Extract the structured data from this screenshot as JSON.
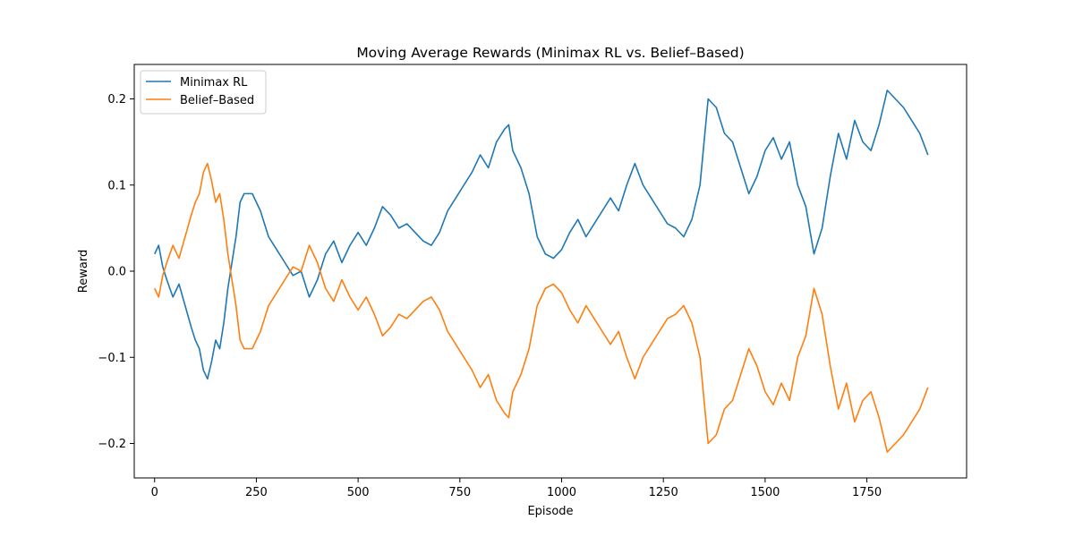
{
  "chart_data": {
    "type": "line",
    "title": "Moving Average Rewards (Minimax RL vs. Belief–Based)",
    "xlabel": "Episode",
    "ylabel": "Reward",
    "xlim": [
      -50,
      1995
    ],
    "ylim": [
      -0.24,
      0.24
    ],
    "xticks": [
      0,
      250,
      500,
      750,
      1000,
      1250,
      1500,
      1750
    ],
    "yticks": [
      -0.2,
      -0.1,
      0.0,
      0.1,
      0.2
    ],
    "ytick_labels": [
      "−0.2",
      "−0.1",
      "0.0",
      "0.1",
      "0.2"
    ],
    "grid": false,
    "legend_position": "top-left",
    "x": [
      0,
      10,
      20,
      30,
      45,
      60,
      75,
      90,
      100,
      110,
      120,
      130,
      140,
      150,
      160,
      170,
      180,
      190,
      200,
      210,
      220,
      240,
      260,
      280,
      300,
      320,
      340,
      360,
      380,
      400,
      420,
      440,
      460,
      480,
      500,
      520,
      540,
      560,
      580,
      600,
      620,
      640,
      660,
      680,
      700,
      720,
      740,
      760,
      780,
      800,
      820,
      840,
      860,
      870,
      880,
      900,
      920,
      940,
      960,
      980,
      1000,
      1020,
      1040,
      1060,
      1080,
      1100,
      1120,
      1140,
      1160,
      1180,
      1200,
      1220,
      1240,
      1260,
      1280,
      1300,
      1320,
      1340,
      1360,
      1380,
      1400,
      1420,
      1440,
      1460,
      1480,
      1500,
      1520,
      1540,
      1560,
      1580,
      1600,
      1620,
      1640,
      1660,
      1680,
      1700,
      1720,
      1740,
      1760,
      1780,
      1800,
      1820,
      1840,
      1860,
      1880,
      1900
    ],
    "series": [
      {
        "name": "Minimax RL",
        "color": "#1f77b4",
        "values": [
          0.02,
          0.03,
          0.005,
          -0.01,
          -0.03,
          -0.015,
          -0.04,
          -0.065,
          -0.08,
          -0.09,
          -0.115,
          -0.125,
          -0.105,
          -0.08,
          -0.09,
          -0.06,
          -0.02,
          0.01,
          0.04,
          0.08,
          0.09,
          0.09,
          0.07,
          0.04,
          0.025,
          0.01,
          -0.005,
          0.0,
          -0.03,
          -0.01,
          0.02,
          0.035,
          0.01,
          0.03,
          0.045,
          0.03,
          0.05,
          0.075,
          0.065,
          0.05,
          0.055,
          0.045,
          0.035,
          0.03,
          0.045,
          0.07,
          0.085,
          0.1,
          0.115,
          0.135,
          0.12,
          0.15,
          0.165,
          0.17,
          0.14,
          0.12,
          0.09,
          0.04,
          0.02,
          0.015,
          0.025,
          0.045,
          0.06,
          0.04,
          0.055,
          0.07,
          0.085,
          0.07,
          0.1,
          0.125,
          0.1,
          0.085,
          0.07,
          0.055,
          0.05,
          0.04,
          0.06,
          0.1,
          0.2,
          0.19,
          0.16,
          0.15,
          0.12,
          0.09,
          0.11,
          0.14,
          0.155,
          0.13,
          0.15,
          0.1,
          0.075,
          0.02,
          0.05,
          0.11,
          0.16,
          0.13,
          0.175,
          0.15,
          0.14,
          0.17,
          0.21,
          0.2,
          0.19,
          0.175,
          0.16,
          0.135
        ]
      },
      {
        "name": "Belief–Based",
        "color": "#ff7f0e",
        "values": [
          -0.02,
          -0.03,
          -0.005,
          0.01,
          0.03,
          0.015,
          0.04,
          0.065,
          0.08,
          0.09,
          0.115,
          0.125,
          0.105,
          0.08,
          0.09,
          0.06,
          0.02,
          -0.01,
          -0.04,
          -0.08,
          -0.09,
          -0.09,
          -0.07,
          -0.04,
          -0.025,
          -0.01,
          0.005,
          0.0,
          0.03,
          0.01,
          -0.02,
          -0.035,
          -0.01,
          -0.03,
          -0.045,
          -0.03,
          -0.05,
          -0.075,
          -0.065,
          -0.05,
          -0.055,
          -0.045,
          -0.035,
          -0.03,
          -0.045,
          -0.07,
          -0.085,
          -0.1,
          -0.115,
          -0.135,
          -0.12,
          -0.15,
          -0.165,
          -0.17,
          -0.14,
          -0.12,
          -0.09,
          -0.04,
          -0.02,
          -0.015,
          -0.025,
          -0.045,
          -0.06,
          -0.04,
          -0.055,
          -0.07,
          -0.085,
          -0.07,
          -0.1,
          -0.125,
          -0.1,
          -0.085,
          -0.07,
          -0.055,
          -0.05,
          -0.04,
          -0.06,
          -0.1,
          -0.2,
          -0.19,
          -0.16,
          -0.15,
          -0.12,
          -0.09,
          -0.11,
          -0.14,
          -0.155,
          -0.13,
          -0.15,
          -0.1,
          -0.075,
          -0.02,
          -0.05,
          -0.11,
          -0.16,
          -0.13,
          -0.175,
          -0.15,
          -0.14,
          -0.17,
          -0.21,
          -0.2,
          -0.19,
          -0.175,
          -0.16,
          -0.135
        ]
      }
    ]
  }
}
